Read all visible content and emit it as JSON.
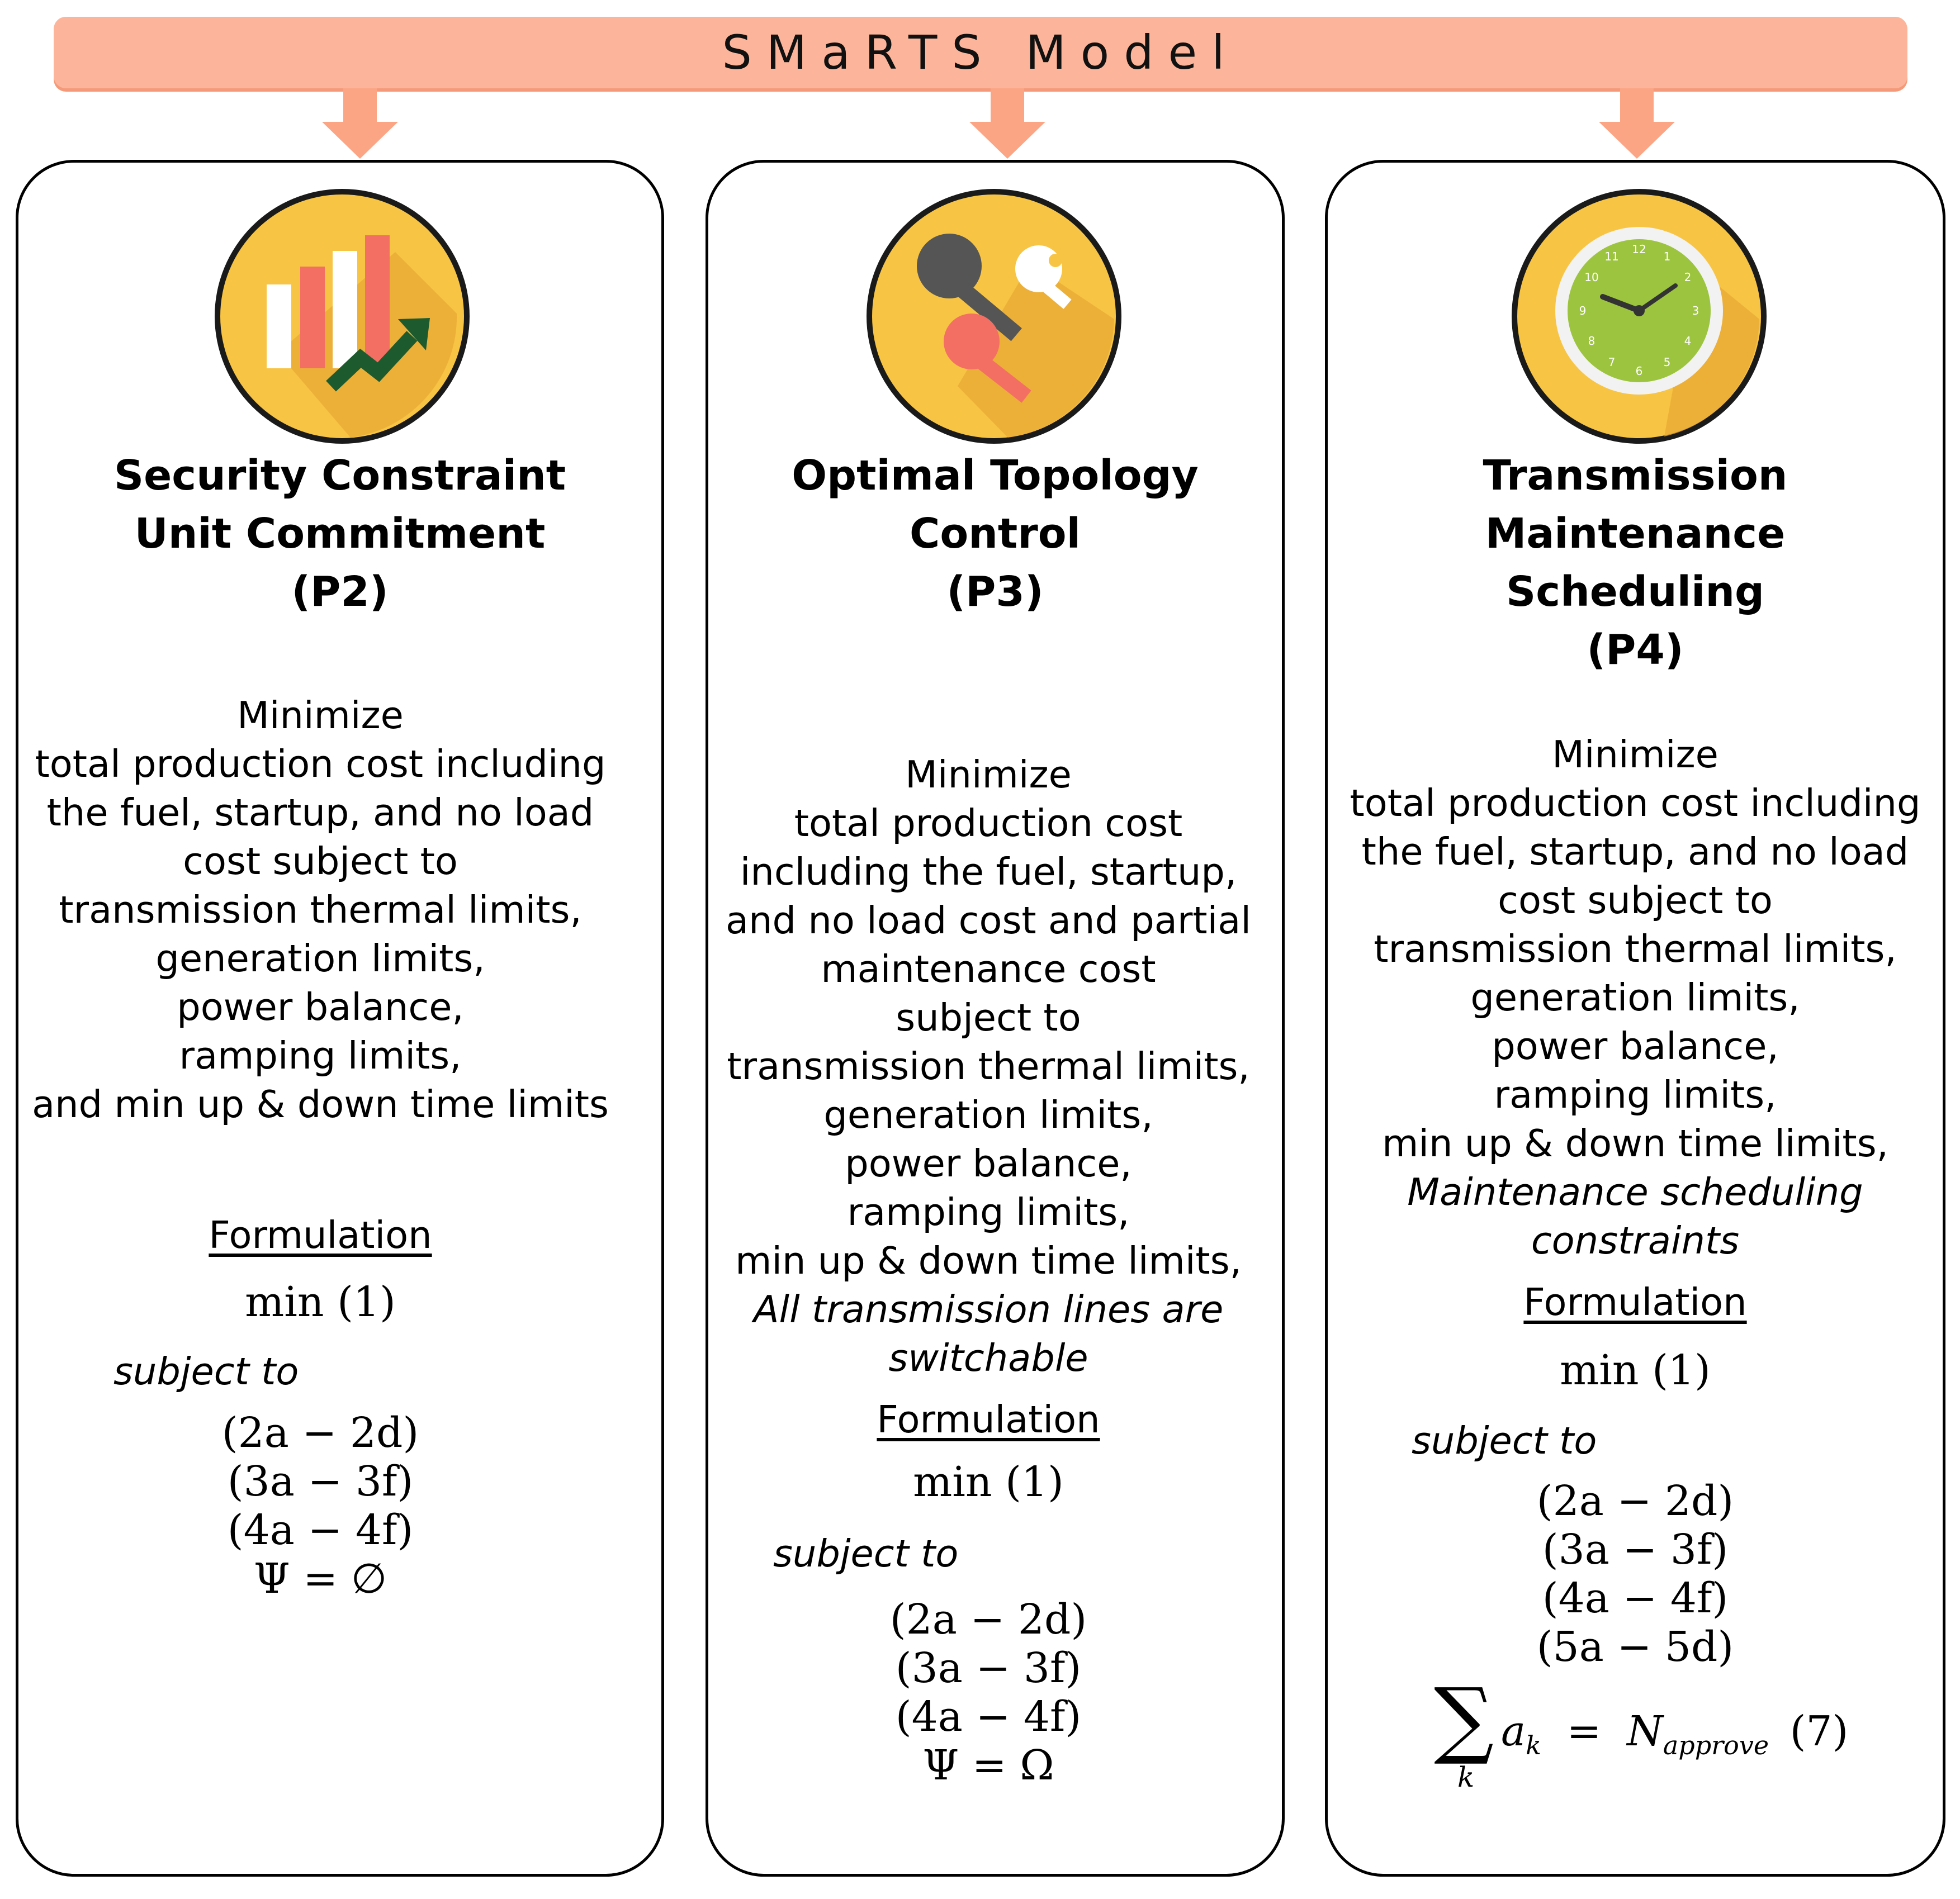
{
  "model_title": "SMaRTS Model",
  "colors": {
    "banner": "#fcb59a",
    "arrow": "#fba585",
    "icon_circle": "#f7c444",
    "icon_shadow": "#e8a935"
  },
  "panels": [
    {
      "icon": "bar-chart-growth-icon",
      "title_lines": [
        "Security Constraint",
        "Unit Commitment",
        "(P2)"
      ],
      "description_lines": [
        {
          "text": "Minimize",
          "italic": false
        },
        {
          "text": "total production cost including",
          "italic": false
        },
        {
          "text": "the fuel, startup, and no load",
          "italic": false
        },
        {
          "text": "cost subject to",
          "italic": false
        },
        {
          "text": "transmission thermal limits,",
          "italic": false
        },
        {
          "text": "generation limits,",
          "italic": false
        },
        {
          "text": "power balance,",
          "italic": false
        },
        {
          "text": "ramping limits,",
          "italic": false
        },
        {
          "text": "and min up & down time limits",
          "italic": false
        }
      ],
      "formulation_label": "Formulation",
      "objective": "min (1)",
      "subject_to": "subject to",
      "constraints": [
        "(2a − 2d)",
        "(3a − 3f)",
        "(4a − 4f)",
        "Ψ = ∅"
      ]
    },
    {
      "icon": "keys-icon",
      "title_lines": [
        "Optimal Topology",
        "Control",
        "(P3)"
      ],
      "description_lines": [
        {
          "text": "Minimize",
          "italic": false
        },
        {
          "text": "total production cost",
          "italic": false
        },
        {
          "text": "including the fuel, startup,",
          "italic": false
        },
        {
          "text": "and no load cost and partial",
          "italic": false
        },
        {
          "text": "maintenance cost",
          "italic": false
        },
        {
          "text": "subject to",
          "italic": false
        },
        {
          "text": "transmission thermal limits,",
          "italic": false
        },
        {
          "text": "generation limits,",
          "italic": false
        },
        {
          "text": "power balance,",
          "italic": false
        },
        {
          "text": "ramping limits,",
          "italic": false
        },
        {
          "text": "min up & down time limits,",
          "italic": false
        },
        {
          "text": "All transmission lines are",
          "italic": true
        },
        {
          "text": "switchable",
          "italic": true
        }
      ],
      "formulation_label": "Formulation",
      "objective": "min (1)",
      "subject_to": "subject to",
      "constraints": [
        "(2a − 2d)",
        "(3a − 3f)",
        "(4a − 4f)",
        "Ψ = Ω"
      ]
    },
    {
      "icon": "clock-icon",
      "title_lines": [
        "Transmission",
        "Maintenance",
        "Scheduling",
        "(P4)"
      ],
      "description_lines": [
        {
          "text": "Minimize",
          "italic": false
        },
        {
          "text": "total production cost including",
          "italic": false
        },
        {
          "text": "the fuel, startup, and no load",
          "italic": false
        },
        {
          "text": "cost subject to",
          "italic": false
        },
        {
          "text": "transmission thermal limits,",
          "italic": false
        },
        {
          "text": "generation limits,",
          "italic": false
        },
        {
          "text": "power balance,",
          "italic": false
        },
        {
          "text": "ramping limits,",
          "italic": false
        },
        {
          "text": "min up & down time limits,",
          "italic": false
        },
        {
          "text": "Maintenance scheduling",
          "italic": true
        },
        {
          "text": "constraints",
          "italic": true
        }
      ],
      "formulation_label": "Formulation",
      "objective": "min (1)",
      "subject_to": "subject to",
      "constraints": [
        "(2a − 2d)",
        "(3a − 3f)",
        "(4a − 4f)",
        "(5a − 5d)"
      ],
      "sum_constraint": {
        "sum_symbol": "∑",
        "index": "k",
        "term": "a",
        "term_sub": "k",
        "equals": "=",
        "rhs": "N",
        "rhs_sub": "approve",
        "ref": "(7)"
      }
    }
  ]
}
